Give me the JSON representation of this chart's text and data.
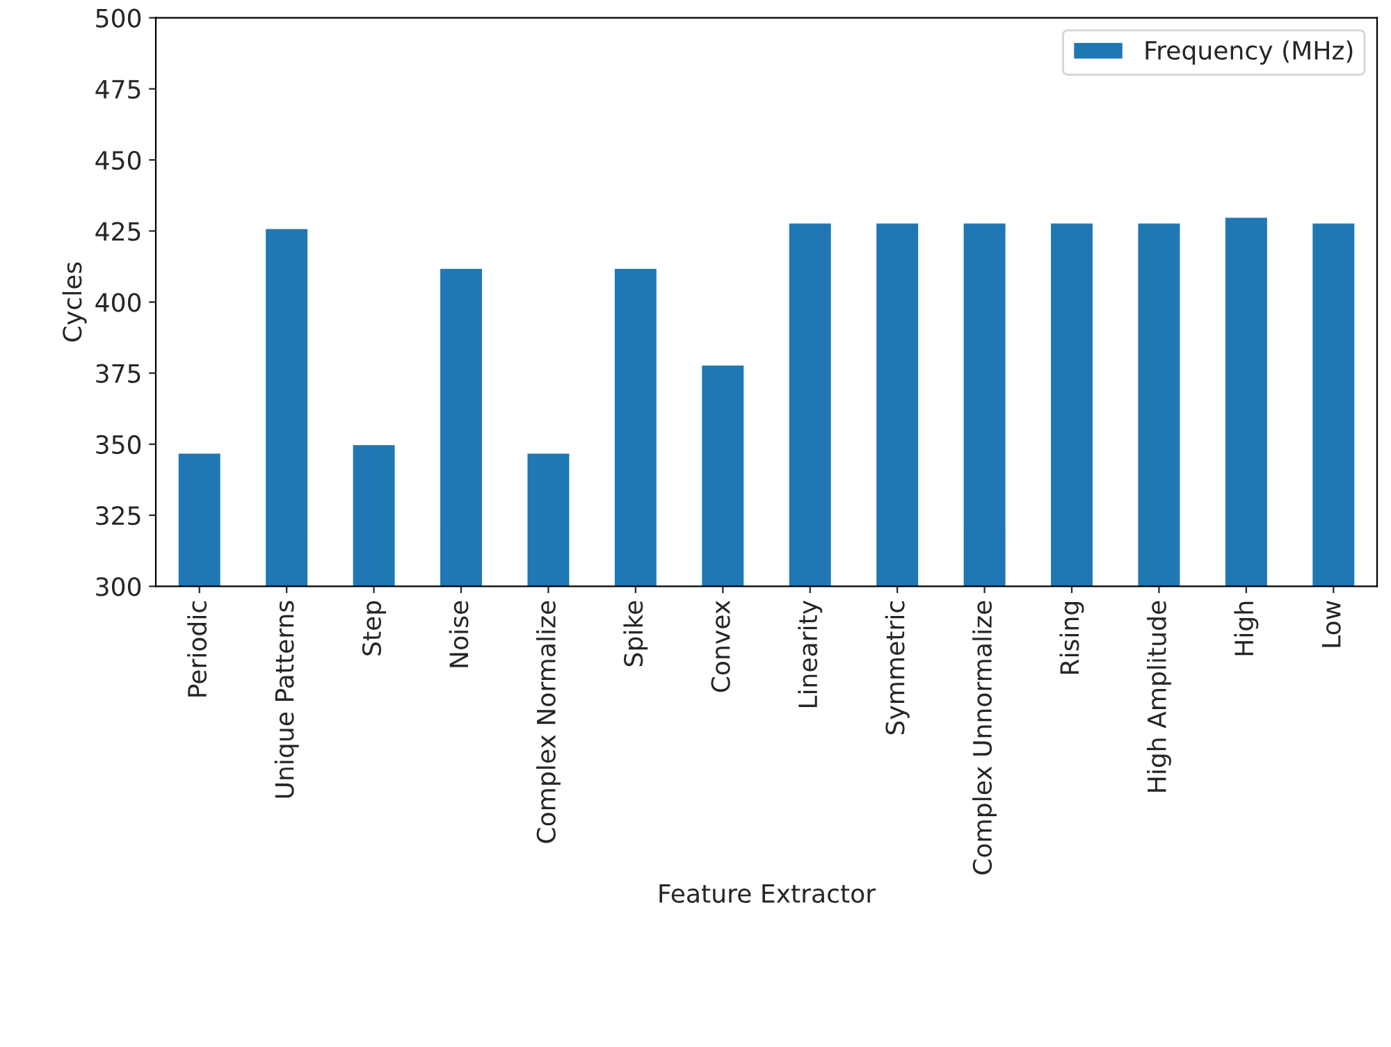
{
  "chart_data": {
    "type": "bar",
    "xlabel": "Feature Extractor",
    "ylabel": "Cycles",
    "categories": [
      "Periodic",
      "Unique Patterns",
      "Step",
      "Noise",
      "Complex Normalize",
      "Spike",
      "Convex",
      "Linearity",
      "Symmetric",
      "Complex Unnormalize",
      "Rising",
      "High Amplitude",
      "High",
      "Low"
    ],
    "series": [
      {
        "name": "Frequency (MHz)",
        "color": "#1f77b4",
        "values": [
          347,
          426,
          350,
          412,
          347,
          412,
          378,
          428,
          428,
          428,
          428,
          428,
          430,
          428
        ]
      }
    ],
    "ylim": [
      300,
      500
    ],
    "yticks": [
      300,
      325,
      350,
      375,
      400,
      425,
      450,
      475,
      500
    ],
    "grid": false,
    "legend": "top right"
  }
}
